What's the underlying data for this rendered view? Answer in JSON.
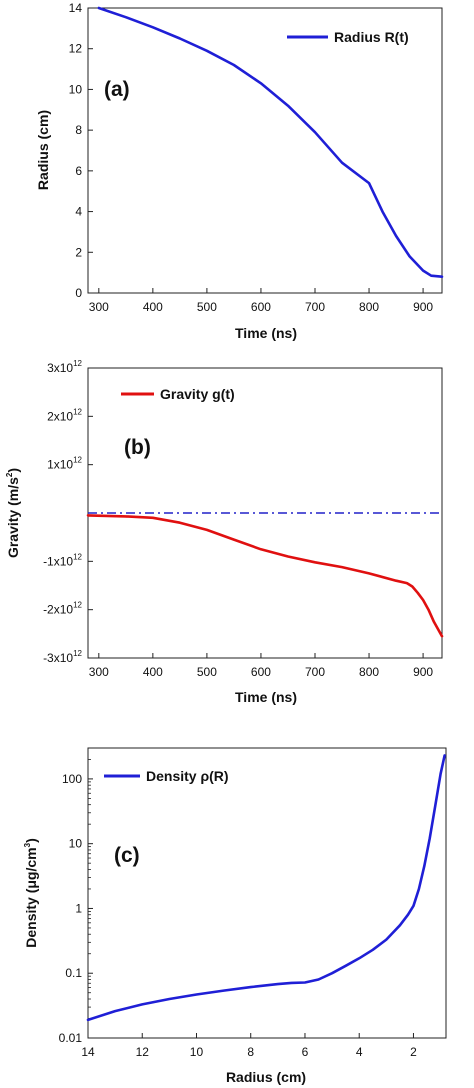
{
  "chart_data": [
    {
      "type": "line",
      "panel_label": "(a)",
      "xlabel": "Time (ns)",
      "ylabel": "Radius (cm)",
      "xlim": [
        280,
        935
      ],
      "ylim": [
        0,
        14
      ],
      "x_ticks": [
        300,
        400,
        500,
        600,
        700,
        800,
        900
      ],
      "y_ticks": [
        0,
        2,
        4,
        6,
        8,
        10,
        12,
        14
      ],
      "legend_position": "top-right",
      "series": [
        {
          "name": "Radius R(t)",
          "color": "#1f1fd6",
          "x": [
            300,
            350,
            400,
            450,
            500,
            550,
            600,
            650,
            700,
            750,
            800,
            825,
            850,
            875,
            900,
            915,
            935
          ],
          "y": [
            14.0,
            13.55,
            13.05,
            12.5,
            11.9,
            11.2,
            10.3,
            9.2,
            7.9,
            6.4,
            5.4,
            4.0,
            2.8,
            1.8,
            1.1,
            0.85,
            0.8
          ]
        }
      ]
    },
    {
      "type": "line",
      "panel_label": "(b)",
      "xlabel": "Time (ns)",
      "ylabel_text": "Gravity (m/s",
      "ylabel_sup": "2",
      "ylabel_end": ")",
      "xlim": [
        280,
        935
      ],
      "ylim": [
        -3000000000000.0,
        3000000000000.0
      ],
      "x_ticks": [
        300,
        400,
        500,
        600,
        700,
        800,
        900
      ],
      "y_ticks": [
        {
          "value": 3000000000000.0,
          "base": "3x10",
          "exp": "12"
        },
        {
          "value": 2000000000000.0,
          "base": "2x10",
          "exp": "12"
        },
        {
          "value": 1000000000000.0,
          "base": "1x10",
          "exp": "12"
        },
        {
          "value": -1000000000000.0,
          "base": "-1x10",
          "exp": "12"
        },
        {
          "value": -2000000000000.0,
          "base": "-2x10",
          "exp": "12"
        },
        {
          "value": -3000000000000.0,
          "base": "-3x10",
          "exp": "12"
        }
      ],
      "legend_position": "top-left",
      "zero_line": {
        "value": 0,
        "color": "#2020c8",
        "style": "dash-dot"
      },
      "series": [
        {
          "name": "Gravity g(t)",
          "color": "#e01010",
          "x": [
            280,
            350,
            400,
            450,
            500,
            550,
            600,
            650,
            700,
            750,
            800,
            850,
            870,
            880,
            890,
            900,
            910,
            920,
            935
          ],
          "y": [
            -50000000000.0,
            -70000000000.0,
            -100000000000.0,
            -200000000000.0,
            -350000000000.0,
            -550000000000.0,
            -750000000000.0,
            -900000000000.0,
            -1020000000000.0,
            -1120000000000.0,
            -1250000000000.0,
            -1400000000000.0,
            -1450000000000.0,
            -1520000000000.0,
            -1650000000000.0,
            -1800000000000.0,
            -2000000000000.0,
            -2250000000000.0,
            -2550000000000.0
          ]
        }
      ]
    },
    {
      "type": "line",
      "panel_label": "(c)",
      "xlabel": "Radius (cm)",
      "ylabel_text": "Density (",
      "ylabel_mu": "μ",
      "ylabel_mid": "g/cm",
      "ylabel_sup": "3",
      "ylabel_end": ")",
      "x_reversed": true,
      "xlim": [
        14,
        0.8
      ],
      "y_scale": "log",
      "ylim": [
        0.01,
        300
      ],
      "x_ticks": [
        14,
        12,
        10,
        8,
        6,
        4,
        2
      ],
      "y_ticks": [
        {
          "value": 0.01,
          "label": "0.01"
        },
        {
          "value": 0.1,
          "label": "0.1"
        },
        {
          "value": 1,
          "label": "1"
        },
        {
          "value": 10,
          "label": "10"
        },
        {
          "value": 100,
          "label": "100"
        }
      ],
      "legend_position": "top-left",
      "series": [
        {
          "name": "Density ρ(R)",
          "color": "#1f1fd6",
          "x": [
            14,
            13,
            12,
            11,
            10,
            9,
            8,
            7,
            6.5,
            6,
            5.5,
            5,
            4.5,
            4,
            3.5,
            3,
            2.5,
            2.2,
            2,
            1.8,
            1.6,
            1.4,
            1.2,
            1.0,
            0.85
          ],
          "y": [
            0.019,
            0.026,
            0.033,
            0.04,
            0.047,
            0.054,
            0.061,
            0.068,
            0.071,
            0.072,
            0.08,
            0.1,
            0.13,
            0.17,
            0.23,
            0.33,
            0.55,
            0.8,
            1.1,
            2.0,
            4.5,
            12,
            38,
            120,
            230
          ]
        }
      ]
    }
  ]
}
